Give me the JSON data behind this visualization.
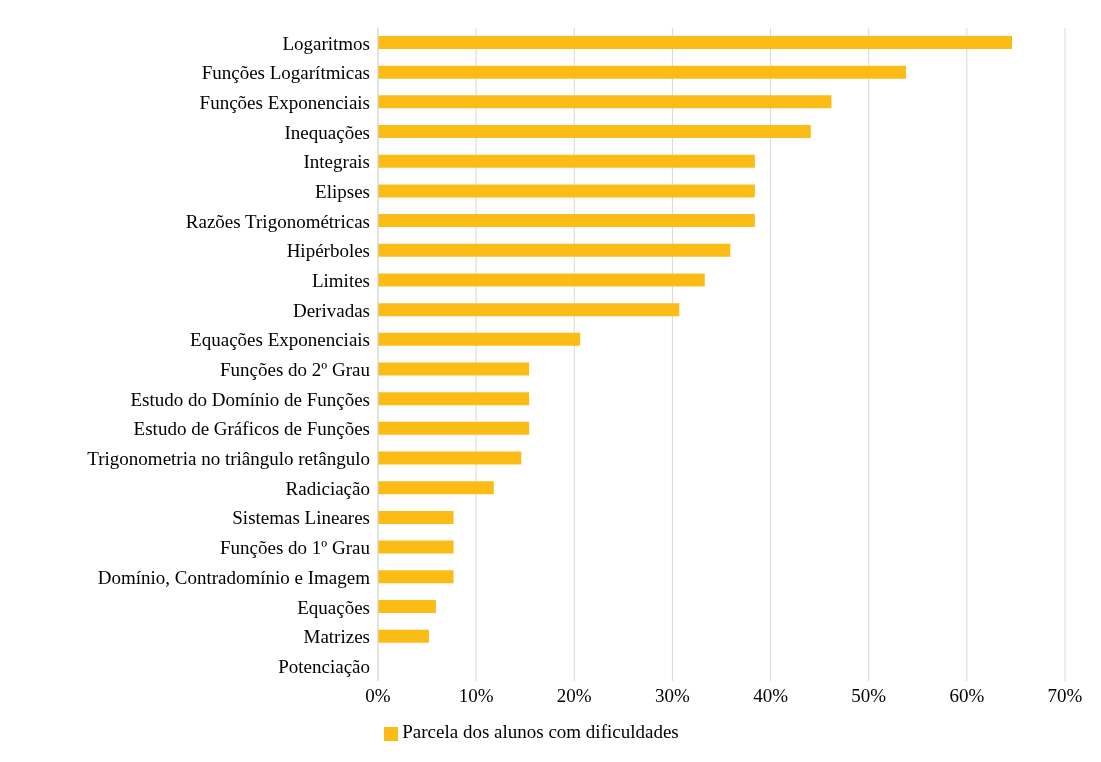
{
  "chart_data": {
    "type": "bar",
    "orientation": "horizontal",
    "categories": [
      "Logaritmos",
      "Funções Logarítmicas",
      "Funções Exponenciais",
      "Inequações",
      "Integrais",
      "Elipses",
      "Razões Trigonométricas",
      "Hipérboles",
      "Limites",
      "Derivadas",
      "Equações Exponenciais",
      "Funções do 2º Grau",
      "Estudo do Domínio de Funções",
      "Estudo de Gráficos de Funções",
      "Trigonometria no triângulo retângulo",
      "Radiciação",
      "Sistemas Lineares",
      "Funções do 1º Grau",
      "Domínio, Contradomínio e Imagem",
      "Equações",
      "Matrizes",
      "Potenciação"
    ],
    "series": [
      {
        "name": "Parcela dos alunos com dificuldades",
        "color": "#fbbc16",
        "values": [
          64.6,
          53.8,
          46.2,
          44.1,
          38.4,
          38.4,
          38.4,
          35.9,
          33.3,
          30.7,
          20.6,
          15.4,
          15.4,
          15.4,
          14.6,
          11.8,
          7.7,
          7.7,
          7.7,
          5.9,
          5.2,
          0
        ]
      }
    ],
    "xlim": [
      0,
      70
    ],
    "xticks": [
      {
        "value": 0,
        "label": "0%"
      },
      {
        "value": 10,
        "label": "10%"
      },
      {
        "value": 20,
        "label": "20%"
      },
      {
        "value": 30,
        "label": "30%"
      },
      {
        "value": 40,
        "label": "40%"
      },
      {
        "value": 50,
        "label": "50%"
      },
      {
        "value": 60,
        "label": "60%"
      },
      {
        "value": 70,
        "label": "70%"
      }
    ],
    "grid": "x",
    "legend": "bottom"
  }
}
